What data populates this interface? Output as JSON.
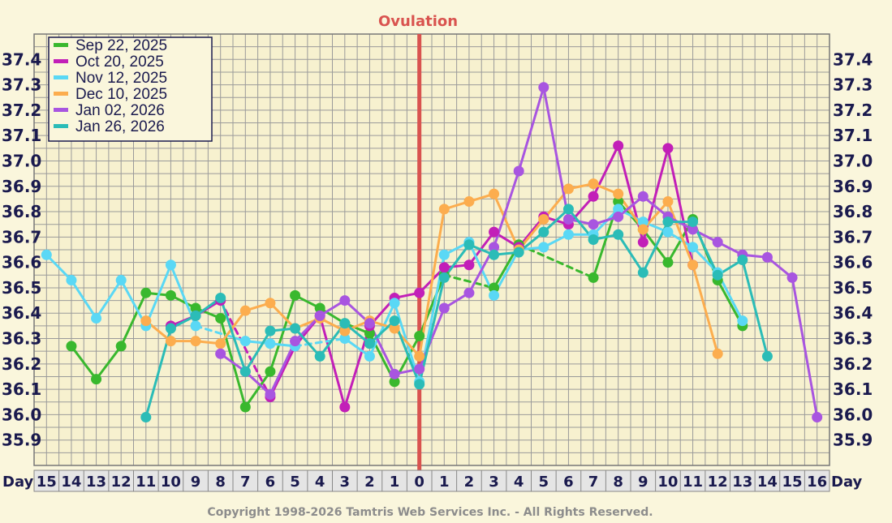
{
  "chart_data": {
    "type": "line",
    "title": "Ovulation",
    "axis_label": "Day",
    "x_ticks": [
      -15,
      -14,
      -13,
      -12,
      -11,
      -10,
      -9,
      -8,
      -7,
      -6,
      -5,
      -4,
      -3,
      -2,
      -1,
      0,
      1,
      2,
      3,
      4,
      5,
      6,
      7,
      8,
      9,
      10,
      11,
      12,
      13,
      14,
      15,
      16
    ],
    "x_tick_labels": [
      "15",
      "14",
      "13",
      "12",
      "11",
      "10",
      "9",
      "8",
      "7",
      "6",
      "5",
      "4",
      "3",
      "2",
      "1",
      "0",
      "1",
      "2",
      "3",
      "4",
      "5",
      "6",
      "7",
      "8",
      "9",
      "10",
      "11",
      "12",
      "13",
      "14",
      "15",
      "16"
    ],
    "ylim": [
      35.8,
      37.5
    ],
    "y_ticks": [
      35.9,
      36.0,
      36.1,
      36.2,
      36.3,
      36.4,
      36.5,
      36.6,
      36.7,
      36.8,
      36.9,
      37.0,
      37.1,
      37.2,
      37.3,
      37.4
    ],
    "y_tick_labels": [
      "35.9",
      "36.0",
      "36.1",
      "36.2",
      "36.3",
      "36.4",
      "36.5",
      "36.6",
      "36.7",
      "36.8",
      "36.9",
      "37.0",
      "37.1",
      "37.2",
      "37.3",
      "37.4"
    ],
    "ovulation_day": 0,
    "grid": true,
    "legend_position": "top-left",
    "series": [
      {
        "name": "Sep 22, 2025",
        "color": "#39b82e",
        "points": [
          [
            -14,
            36.27
          ],
          [
            -13,
            36.14
          ],
          [
            -12,
            36.27
          ],
          [
            -11,
            36.48
          ],
          [
            -10,
            36.47
          ],
          [
            -9,
            36.42
          ],
          [
            -8,
            36.38
          ],
          [
            -7,
            36.03
          ],
          [
            -6,
            36.17
          ],
          [
            -5,
            36.47
          ],
          [
            -4,
            36.42
          ],
          [
            -3,
            36.36
          ],
          [
            -2,
            36.32
          ],
          [
            -1,
            36.13
          ],
          [
            0,
            36.31
          ],
          [
            1,
            36.55
          ],
          [
            2,
            null
          ],
          [
            3,
            36.5
          ],
          [
            4,
            36.67
          ],
          [
            5,
            null
          ],
          [
            6,
            null
          ],
          [
            7,
            36.54
          ],
          [
            8,
            36.84
          ],
          [
            9,
            36.73
          ],
          [
            10,
            36.6
          ],
          [
            11,
            36.77
          ],
          [
            12,
            36.53
          ],
          [
            13,
            36.35
          ]
        ]
      },
      {
        "name": "Oct 20, 2025",
        "color": "#c21fb8",
        "points": [
          [
            -10,
            36.35
          ],
          [
            -9,
            36.39
          ],
          [
            -8,
            36.45
          ],
          [
            -7,
            null
          ],
          [
            -6,
            36.07
          ],
          [
            -5,
            36.27
          ],
          [
            -4,
            36.39
          ],
          [
            -3,
            36.03
          ],
          [
            -2,
            36.35
          ],
          [
            -1,
            36.46
          ],
          [
            0,
            36.48
          ],
          [
            1,
            36.58
          ],
          [
            2,
            36.59
          ],
          [
            3,
            36.72
          ],
          [
            4,
            36.66
          ],
          [
            5,
            36.78
          ],
          [
            6,
            36.75
          ],
          [
            7,
            36.86
          ],
          [
            8,
            37.06
          ],
          [
            9,
            36.68
          ],
          [
            10,
            37.05
          ],
          [
            11,
            36.59
          ]
        ]
      },
      {
        "name": "Nov 12, 2025",
        "color": "#5ad8f5",
        "points": [
          [
            -15,
            36.63
          ],
          [
            -14,
            36.53
          ],
          [
            -13,
            36.38
          ],
          [
            -12,
            36.53
          ],
          [
            -11,
            36.35
          ],
          [
            -10,
            36.59
          ],
          [
            -9,
            36.35
          ],
          [
            -8,
            null
          ],
          [
            -7,
            36.29
          ],
          [
            -6,
            36.28
          ],
          [
            -5,
            36.27
          ],
          [
            -4,
            null
          ],
          [
            -3,
            36.3
          ],
          [
            -2,
            36.23
          ],
          [
            -1,
            36.44
          ],
          [
            0,
            36.13
          ],
          [
            1,
            36.63
          ],
          [
            2,
            36.68
          ],
          [
            3,
            36.47
          ],
          [
            4,
            36.65
          ],
          [
            5,
            36.66
          ],
          [
            6,
            36.71
          ],
          [
            7,
            36.71
          ],
          [
            8,
            36.81
          ],
          [
            9,
            36.76
          ],
          [
            10,
            36.72
          ],
          [
            11,
            36.66
          ],
          [
            12,
            36.56
          ],
          [
            13,
            36.37
          ]
        ]
      },
      {
        "name": "Dec 10, 2025",
        "color": "#fcad4e",
        "points": [
          [
            -11,
            36.37
          ],
          [
            -10,
            36.29
          ],
          [
            -9,
            36.29
          ],
          [
            -8,
            36.28
          ],
          [
            -7,
            36.41
          ],
          [
            -6,
            36.44
          ],
          [
            -5,
            36.34
          ],
          [
            -4,
            36.38
          ],
          [
            -3,
            36.33
          ],
          [
            -2,
            36.37
          ],
          [
            -1,
            36.34
          ],
          [
            0,
            36.23
          ],
          [
            1,
            36.81
          ],
          [
            2,
            36.84
          ],
          [
            3,
            36.87
          ],
          [
            4,
            36.65
          ],
          [
            5,
            36.77
          ],
          [
            6,
            36.89
          ],
          [
            7,
            36.91
          ],
          [
            8,
            36.87
          ],
          [
            9,
            36.73
          ],
          [
            10,
            36.84
          ],
          [
            11,
            36.59
          ],
          [
            12,
            36.24
          ]
        ]
      },
      {
        "name": "Jan 02, 2026",
        "color": "#a855e0",
        "points": [
          [
            -8,
            36.24
          ],
          [
            -7,
            36.17
          ],
          [
            -6,
            36.08
          ],
          [
            -5,
            36.29
          ],
          [
            -4,
            36.39
          ],
          [
            -3,
            36.45
          ],
          [
            -2,
            36.36
          ],
          [
            -1,
            36.16
          ],
          [
            0,
            36.18
          ],
          [
            1,
            36.42
          ],
          [
            2,
            36.48
          ],
          [
            3,
            36.66
          ],
          [
            4,
            36.96
          ],
          [
            5,
            37.29
          ],
          [
            6,
            36.77
          ],
          [
            7,
            36.75
          ],
          [
            8,
            36.78
          ],
          [
            9,
            36.86
          ],
          [
            10,
            36.78
          ],
          [
            11,
            36.73
          ],
          [
            12,
            36.68
          ],
          [
            13,
            36.63
          ],
          [
            14,
            36.62
          ],
          [
            15,
            36.54
          ],
          [
            16,
            35.99
          ]
        ]
      },
      {
        "name": "Jan 26, 2026",
        "color": "#2bbcb7",
        "points": [
          [
            -11,
            35.99
          ],
          [
            -10,
            36.34
          ],
          [
            -9,
            36.39
          ],
          [
            -8,
            36.46
          ],
          [
            -7,
            36.17
          ],
          [
            -6,
            36.33
          ],
          [
            -5,
            36.34
          ],
          [
            -4,
            36.23
          ],
          [
            -3,
            36.36
          ],
          [
            -2,
            36.28
          ],
          [
            -1,
            36.37
          ],
          [
            0,
            36.12
          ],
          [
            1,
            36.54
          ],
          [
            2,
            36.67
          ],
          [
            3,
            36.63
          ],
          [
            4,
            36.64
          ],
          [
            5,
            36.72
          ],
          [
            6,
            36.81
          ],
          [
            7,
            36.69
          ],
          [
            8,
            36.71
          ],
          [
            9,
            36.56
          ],
          [
            10,
            36.76
          ],
          [
            11,
            36.76
          ],
          [
            12,
            36.55
          ],
          [
            13,
            36.61
          ],
          [
            14,
            36.23
          ]
        ]
      }
    ]
  },
  "copyright": "Copyright 1998-2026 Tamtris Web Services Inc. - All Rights Reserved."
}
